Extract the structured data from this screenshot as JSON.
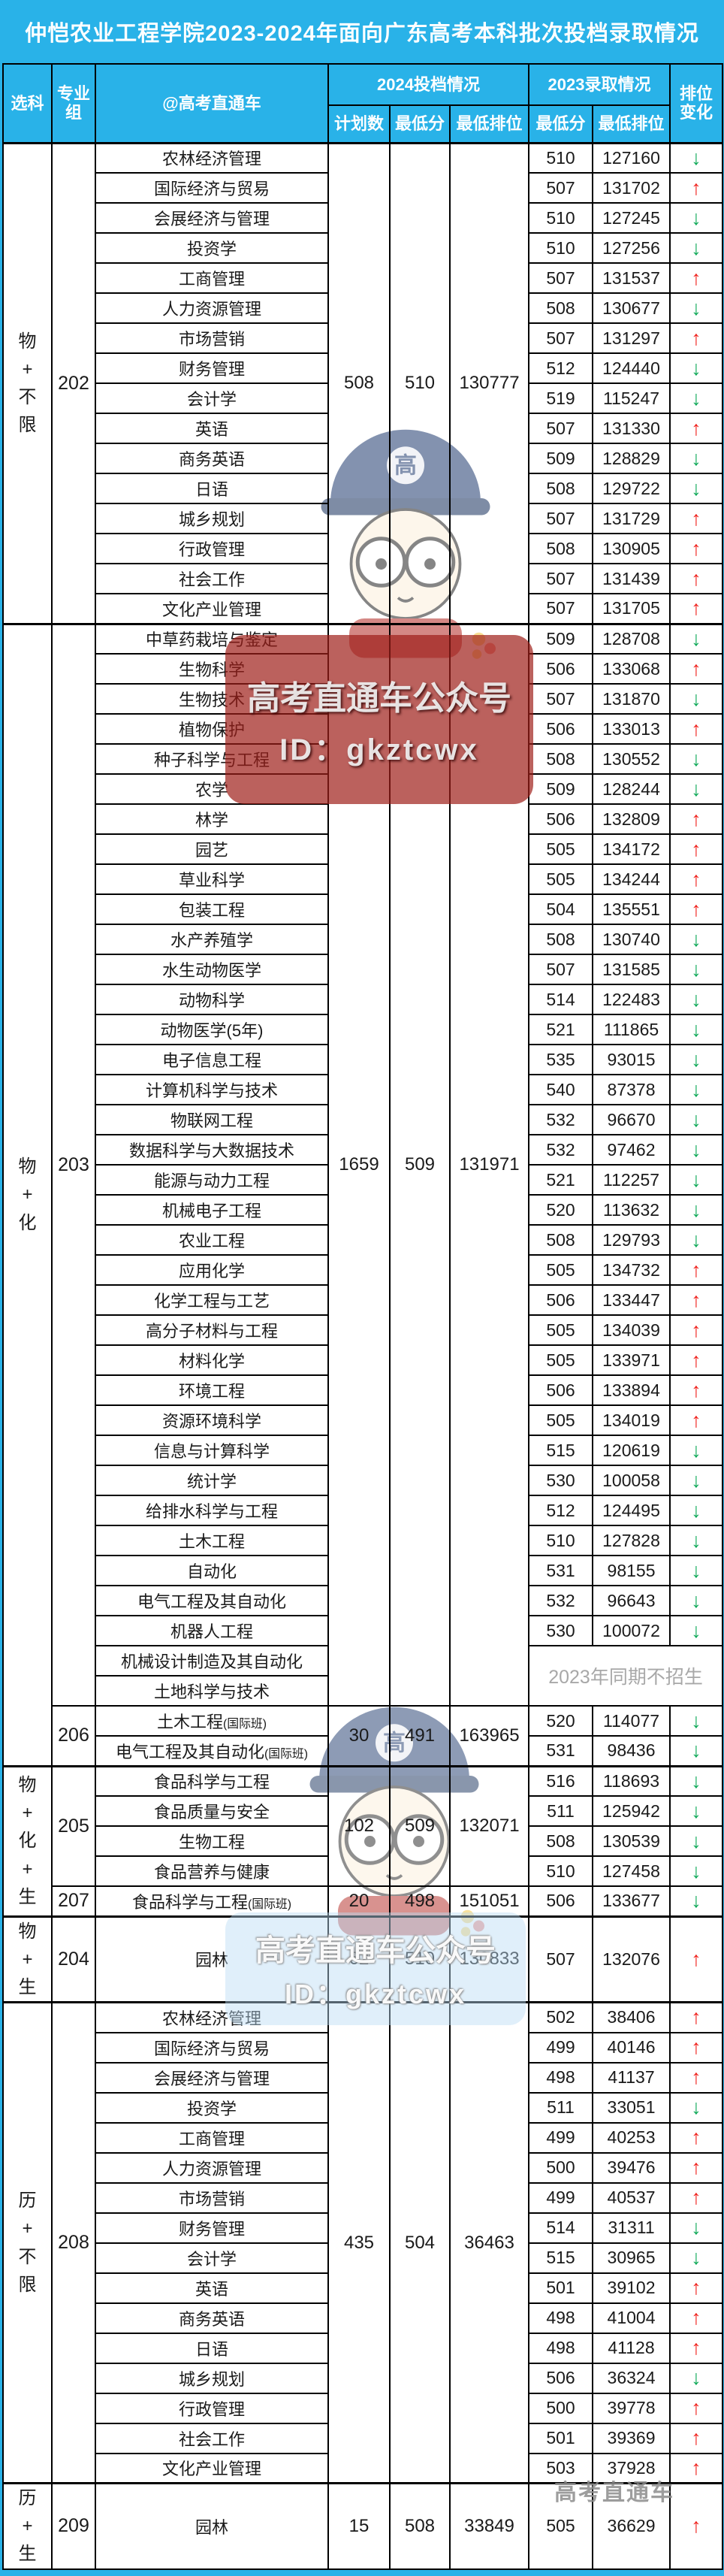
{
  "title": "仲恺农业工程学院2023-2024年面向广东高考本科批次投档录取情况",
  "header": {
    "subject": "选科",
    "group": "专业\n组",
    "major": "@高考直通车",
    "sec2024": "2024投档情况",
    "sec2023": "2023录取情况",
    "rank_change": "排位\n变化",
    "plan": "计划数",
    "min_score_2024": "最低分",
    "min_rank_2024": "最低排位",
    "min_score_2023": "最低分",
    "min_rank_2023": "最低排位"
  },
  "icons": {
    "up_arrow": "↑",
    "down_arrow": "↓"
  },
  "colors": {
    "header_bg": "#29b2e8",
    "up": "#f0211c",
    "down": "#0fa958",
    "note_gray": "#a8a8a8"
  },
  "no_enroll_note": "2023年同期不招生",
  "watermarks": {
    "brand_line1": "高考直通车公众号",
    "brand_line2": "ID：gkztcwx",
    "brand_small": "高考直通车"
  },
  "chart_data": {
    "type": "table",
    "title": "仲恺农业工程学院2023-2024年面向广东高考本科批次投档录取情况",
    "columns": [
      "选科",
      "专业组",
      "专业",
      "2024计划数",
      "2024最低分",
      "2024最低排位",
      "2023最低分",
      "2023最低排位",
      "排位变化"
    ],
    "sections": [
      {
        "subject": "物+不限",
        "groups": [
          {
            "group": "202",
            "plan": "508",
            "score": "510",
            "rank": "130777",
            "majors": [
              {
                "name": "农林经济管理",
                "score": "510",
                "rank": "127160",
                "trend": "down"
              },
              {
                "name": "国际经济与贸易",
                "score": "507",
                "rank": "131702",
                "trend": "up"
              },
              {
                "name": "会展经济与管理",
                "score": "510",
                "rank": "127245",
                "trend": "down"
              },
              {
                "name": "投资学",
                "score": "510",
                "rank": "127256",
                "trend": "down"
              },
              {
                "name": "工商管理",
                "score": "507",
                "rank": "131537",
                "trend": "up"
              },
              {
                "name": "人力资源管理",
                "score": "508",
                "rank": "130677",
                "trend": "down"
              },
              {
                "name": "市场营销",
                "score": "507",
                "rank": "131297",
                "trend": "up"
              },
              {
                "name": "财务管理",
                "score": "512",
                "rank": "124440",
                "trend": "down"
              },
              {
                "name": "会计学",
                "score": "519",
                "rank": "115247",
                "trend": "down"
              },
              {
                "name": "英语",
                "score": "507",
                "rank": "131330",
                "trend": "up"
              },
              {
                "name": "商务英语",
                "score": "509",
                "rank": "128829",
                "trend": "down"
              },
              {
                "name": "日语",
                "score": "508",
                "rank": "129722",
                "trend": "down"
              },
              {
                "name": "城乡规划",
                "score": "507",
                "rank": "131729",
                "trend": "up"
              },
              {
                "name": "行政管理",
                "score": "508",
                "rank": "130905",
                "trend": "up"
              },
              {
                "name": "社会工作",
                "score": "507",
                "rank": "131439",
                "trend": "up"
              },
              {
                "name": "文化产业管理",
                "score": "507",
                "rank": "131705",
                "trend": "up"
              }
            ]
          }
        ]
      },
      {
        "subject": "物+化",
        "groups": [
          {
            "group": "203",
            "plan": "1659",
            "score": "509",
            "rank": "131971",
            "majors": [
              {
                "name": "中草药栽培与鉴定",
                "score": "509",
                "rank": "128708",
                "trend": "down"
              },
              {
                "name": "生物科学",
                "score": "506",
                "rank": "133068",
                "trend": "up"
              },
              {
                "name": "生物技术",
                "score": "507",
                "rank": "131870",
                "trend": "down"
              },
              {
                "name": "植物保护",
                "score": "506",
                "rank": "133013",
                "trend": "up"
              },
              {
                "name": "种子科学与工程",
                "score": "508",
                "rank": "130552",
                "trend": "down"
              },
              {
                "name": "农学",
                "score": "509",
                "rank": "128244",
                "trend": "down"
              },
              {
                "name": "林学",
                "score": "506",
                "rank": "132809",
                "trend": "up"
              },
              {
                "name": "园艺",
                "score": "505",
                "rank": "134172",
                "trend": "up"
              },
              {
                "name": "草业科学",
                "score": "505",
                "rank": "134244",
                "trend": "up"
              },
              {
                "name": "包装工程",
                "score": "504",
                "rank": "135551",
                "trend": "up"
              },
              {
                "name": "水产养殖学",
                "score": "508",
                "rank": "130740",
                "trend": "down"
              },
              {
                "name": "水生动物医学",
                "score": "507",
                "rank": "131585",
                "trend": "down"
              },
              {
                "name": "动物科学",
                "score": "514",
                "rank": "122483",
                "trend": "down"
              },
              {
                "name": "动物医学(5年)",
                "score": "521",
                "rank": "111865",
                "trend": "down"
              },
              {
                "name": "电子信息工程",
                "score": "535",
                "rank": "93015",
                "trend": "down"
              },
              {
                "name": "计算机科学与技术",
                "score": "540",
                "rank": "87378",
                "trend": "down"
              },
              {
                "name": "物联网工程",
                "score": "532",
                "rank": "96670",
                "trend": "down"
              },
              {
                "name": "数据科学与大数据技术",
                "score": "532",
                "rank": "97462",
                "trend": "down"
              },
              {
                "name": "能源与动力工程",
                "score": "521",
                "rank": "112257",
                "trend": "down"
              },
              {
                "name": "机械电子工程",
                "score": "520",
                "rank": "113632",
                "trend": "down"
              },
              {
                "name": "农业工程",
                "score": "508",
                "rank": "129793",
                "trend": "down"
              },
              {
                "name": "应用化学",
                "score": "505",
                "rank": "134732",
                "trend": "up"
              },
              {
                "name": "化学工程与工艺",
                "score": "506",
                "rank": "133447",
                "trend": "up"
              },
              {
                "name": "高分子材料与工程",
                "score": "505",
                "rank": "134039",
                "trend": "up"
              },
              {
                "name": "材料化学",
                "score": "505",
                "rank": "133971",
                "trend": "up"
              },
              {
                "name": "环境工程",
                "score": "506",
                "rank": "133894",
                "trend": "up"
              },
              {
                "name": "资源环境科学",
                "score": "505",
                "rank": "134019",
                "trend": "up"
              },
              {
                "name": "信息与计算科学",
                "score": "515",
                "rank": "120619",
                "trend": "down"
              },
              {
                "name": "统计学",
                "score": "530",
                "rank": "100058",
                "trend": "down"
              },
              {
                "name": "给排水科学与工程",
                "score": "512",
                "rank": "124495",
                "trend": "down"
              },
              {
                "name": "土木工程",
                "score": "510",
                "rank": "127828",
                "trend": "down"
              },
              {
                "name": "自动化",
                "score": "531",
                "rank": "98155",
                "trend": "down"
              },
              {
                "name": "电气工程及其自动化",
                "score": "532",
                "rank": "96643",
                "trend": "down"
              },
              {
                "name": "机器人工程",
                "score": "530",
                "rank": "100072",
                "trend": "down"
              },
              {
                "name": "机械设计制造及其自动化",
                "no2023": true
              },
              {
                "name": "土地科学与技术",
                "no2023": true
              }
            ]
          },
          {
            "group": "206",
            "plan": "30",
            "score": "491",
            "rank": "163965",
            "majors": [
              {
                "name": "土木工程",
                "suffix": "(国际班)",
                "score": "520",
                "rank": "114077",
                "trend": "down"
              },
              {
                "name": "电气工程及其自动化",
                "suffix": "(国际班)",
                "score": "531",
                "rank": "98436",
                "trend": "down"
              }
            ]
          }
        ]
      },
      {
        "subject": "物+化+生",
        "groups": [
          {
            "group": "205",
            "plan": "102",
            "score": "509",
            "rank": "132071",
            "majors": [
              {
                "name": "食品科学与工程",
                "score": "516",
                "rank": "118693",
                "trend": "down"
              },
              {
                "name": "食品质量与安全",
                "score": "511",
                "rank": "125942",
                "trend": "down"
              },
              {
                "name": "生物工程",
                "score": "508",
                "rank": "130539",
                "trend": "down"
              },
              {
                "name": "食品营养与健康",
                "score": "510",
                "rank": "127458",
                "trend": "down"
              }
            ]
          },
          {
            "group": "207",
            "plan": "20",
            "score": "498",
            "rank": "151051",
            "majors": [
              {
                "name": "食品科学与工程",
                "suffix": "(国际班)",
                "score": "506",
                "rank": "133677",
                "trend": "down"
              }
            ]
          }
        ]
      },
      {
        "subject": "物+生",
        "groups": [
          {
            "group": "204",
            "plan": "62",
            "score": "510",
            "rank": "130833",
            "majors": [
              {
                "name": "园林",
                "score": "507",
                "rank": "132076",
                "trend": "up"
              }
            ]
          }
        ]
      },
      {
        "subject": "历+不限",
        "groups": [
          {
            "group": "208",
            "plan": "435",
            "score": "504",
            "rank": "36463",
            "majors": [
              {
                "name": "农林经济管理",
                "score": "502",
                "rank": "38406",
                "trend": "up"
              },
              {
                "name": "国际经济与贸易",
                "score": "499",
                "rank": "40146",
                "trend": "up"
              },
              {
                "name": "会展经济与管理",
                "score": "498",
                "rank": "41137",
                "trend": "up"
              },
              {
                "name": "投资学",
                "score": "511",
                "rank": "33051",
                "trend": "down"
              },
              {
                "name": "工商管理",
                "score": "499",
                "rank": "40253",
                "trend": "up"
              },
              {
                "name": "人力资源管理",
                "score": "500",
                "rank": "39476",
                "trend": "up"
              },
              {
                "name": "市场营销",
                "score": "499",
                "rank": "40537",
                "trend": "up"
              },
              {
                "name": "财务管理",
                "score": "514",
                "rank": "31311",
                "trend": "down"
              },
              {
                "name": "会计学",
                "score": "515",
                "rank": "30965",
                "trend": "down"
              },
              {
                "name": "英语",
                "score": "501",
                "rank": "39102",
                "trend": "up"
              },
              {
                "name": "商务英语",
                "score": "498",
                "rank": "41004",
                "trend": "up"
              },
              {
                "name": "日语",
                "score": "498",
                "rank": "41128",
                "trend": "up"
              },
              {
                "name": "城乡规划",
                "score": "506",
                "rank": "36324",
                "trend": "down"
              },
              {
                "name": "行政管理",
                "score": "500",
                "rank": "39778",
                "trend": "up"
              },
              {
                "name": "社会工作",
                "score": "501",
                "rank": "39369",
                "trend": "up"
              },
              {
                "name": "文化产业管理",
                "score": "503",
                "rank": "37928",
                "trend": "up"
              }
            ]
          }
        ]
      },
      {
        "subject": "历+生",
        "groups": [
          {
            "group": "209",
            "plan": "15",
            "score": "508",
            "rank": "33849",
            "majors": [
              {
                "name": "园林",
                "score": "505",
                "rank": "36629",
                "trend": "up"
              }
            ]
          }
        ]
      }
    ]
  }
}
